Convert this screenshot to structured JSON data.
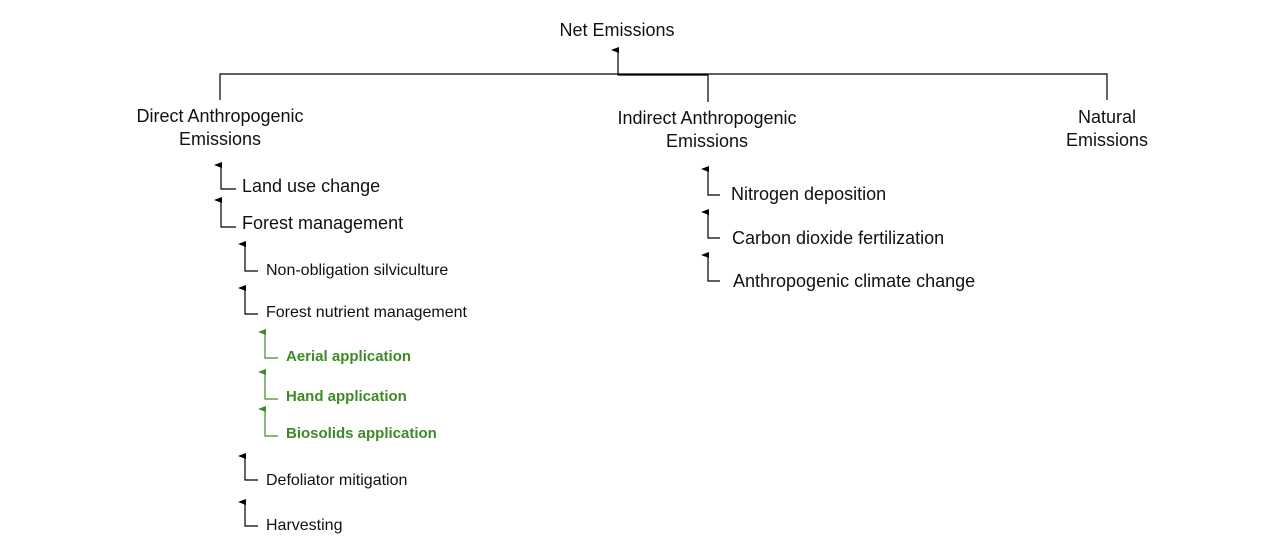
{
  "root": {
    "label": "Net Emissions"
  },
  "branches": {
    "direct": {
      "label_line1": "Direct Anthropogenic",
      "label_line2": "Emissions",
      "items": [
        {
          "label": "Land use change"
        },
        {
          "label": "Forest management"
        }
      ],
      "forest_management_items": [
        {
          "label": "Non-obligation silviculture"
        },
        {
          "label": "Forest nutrient management"
        },
        {
          "label": "Defoliator mitigation"
        },
        {
          "label": "Harvesting"
        }
      ],
      "nutrient_items": [
        {
          "label": "Aerial application"
        },
        {
          "label": "Hand application"
        },
        {
          "label": "Biosolids application"
        }
      ]
    },
    "indirect": {
      "label_line1": "Indirect Anthropogenic",
      "label_line2": "Emissions",
      "items": [
        {
          "label": "Nitrogen deposition"
        },
        {
          "label": "Carbon dioxide fertilization"
        },
        {
          "label": "Anthropogenic climate change"
        }
      ]
    },
    "natural": {
      "label_line1": "Natural",
      "label_line2": "Emissions"
    }
  },
  "colors": {
    "line": "#000000",
    "highlight": "#3e8a27"
  }
}
